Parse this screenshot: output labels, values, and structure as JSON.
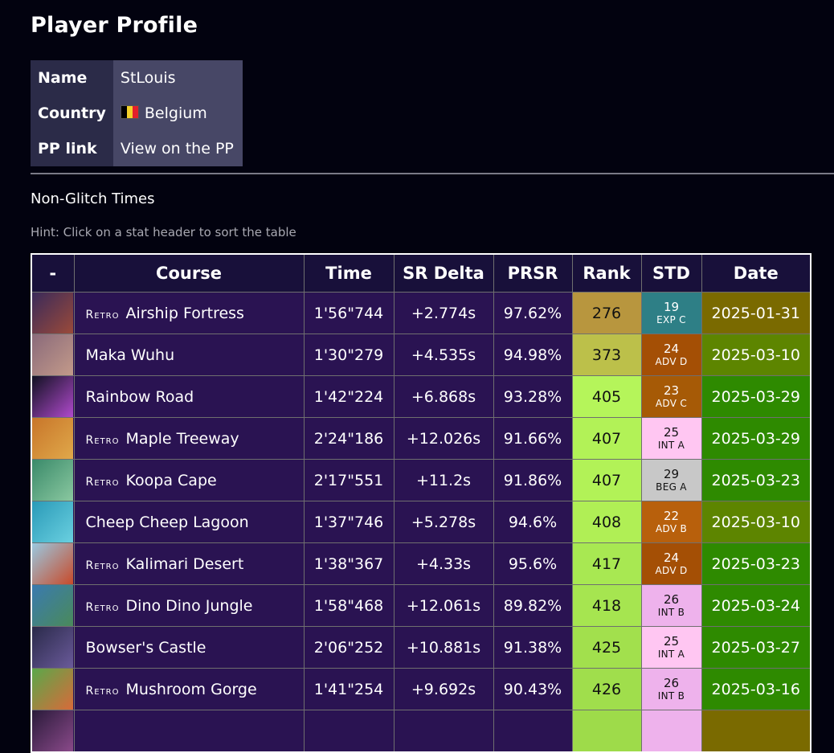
{
  "page": {
    "title": "Player Profile"
  },
  "profile": [
    {
      "label": "Name",
      "value": "StLouis"
    },
    {
      "label": "Country",
      "value": "Belgium"
    },
    {
      "label": "PP link",
      "value": "View on the PP"
    }
  ],
  "section_title": "Non-Glitch Times",
  "hint": "Hint: Click on a stat header to sort the table",
  "table": {
    "headers": [
      "-",
      "Course",
      "Time",
      "SR Delta",
      "PRSR",
      "Rank",
      "STD",
      "Date"
    ],
    "rows": [
      {
        "retro": true,
        "retro_label": "Retro",
        "course": "Airship Fortress",
        "time": "1'56\"744",
        "delta": "+2.774s",
        "prsr": "97.62%",
        "rank": "276",
        "std_num": "19",
        "std_code": "EXP C",
        "date": "2025-01-31",
        "rank_color": "#b8963e",
        "std_color": "#2e7f86",
        "std_text": "#ffffff",
        "date_color": "#7a6a00",
        "thumb": [
          "#3a2a5a",
          "#9a4a3a"
        ]
      },
      {
        "retro": false,
        "retro_label": "",
        "course": "Maka Wuhu",
        "time": "1'30\"279",
        "delta": "+4.535s",
        "prsr": "94.98%",
        "rank": "373",
        "std_num": "24",
        "std_code": "ADV D",
        "date": "2025-03-10",
        "rank_color": "#bcc04a",
        "std_color": "#a44f05",
        "std_text": "#ffffff",
        "date_color": "#5d8500",
        "thumb": [
          "#8a6a7a",
          "#c39a8a"
        ]
      },
      {
        "retro": false,
        "retro_label": "",
        "course": "Rainbow Road",
        "time": "1'42\"224",
        "delta": "+6.868s",
        "prsr": "93.28%",
        "rank": "405",
        "std_num": "23",
        "std_code": "ADV C",
        "date": "2025-03-29",
        "rank_color": "#b5f55a",
        "std_color": "#a65a06",
        "std_text": "#ffffff",
        "date_color": "#2e8a00",
        "thumb": [
          "#111122",
          "#b04acc"
        ]
      },
      {
        "retro": true,
        "retro_label": "Retro",
        "course": "Maple Treeway",
        "time": "2'24\"186",
        "delta": "+12.026s",
        "prsr": "91.66%",
        "rank": "407",
        "std_num": "25",
        "std_code": "INT A",
        "date": "2025-03-29",
        "rank_color": "#b2f257",
        "std_color": "#ffc6f2",
        "std_text": "#111111",
        "date_color": "#2e8a00",
        "thumb": [
          "#c8762a",
          "#e0a84a"
        ]
      },
      {
        "retro": true,
        "retro_label": "Retro",
        "course": "Koopa Cape",
        "time": "2'17\"551",
        "delta": "+11.2s",
        "prsr": "91.86%",
        "rank": "407",
        "std_num": "29",
        "std_code": "BEG A",
        "date": "2025-03-23",
        "rank_color": "#b2f257",
        "std_color": "#c8c8c8",
        "std_text": "#111111",
        "date_color": "#2e8a00",
        "thumb": [
          "#3a8a6a",
          "#8ac8a0"
        ]
      },
      {
        "retro": false,
        "retro_label": "",
        "course": "Cheep Cheep Lagoon",
        "time": "1'37\"746",
        "delta": "+5.278s",
        "prsr": "94.6%",
        "rank": "408",
        "std_num": "22",
        "std_code": "ADV B",
        "date": "2025-03-10",
        "rank_color": "#b0ef55",
        "std_color": "#b8600c",
        "std_text": "#ffffff",
        "date_color": "#5d8500",
        "thumb": [
          "#2a9ab8",
          "#6ad0e0"
        ]
      },
      {
        "retro": true,
        "retro_label": "Retro",
        "course": "Kalimari Desert",
        "time": "1'38\"367",
        "delta": "+4.33s",
        "prsr": "95.6%",
        "rank": "417",
        "std_num": "24",
        "std_code": "ADV D",
        "date": "2025-03-23",
        "rank_color": "#a8e852",
        "std_color": "#a44f05",
        "std_text": "#ffffff",
        "date_color": "#2e8a00",
        "thumb": [
          "#9ac8e0",
          "#c84a2a"
        ]
      },
      {
        "retro": true,
        "retro_label": "Retro",
        "course": "Dino Dino Jungle",
        "time": "1'58\"468",
        "delta": "+12.061s",
        "prsr": "89.82%",
        "rank": "418",
        "std_num": "26",
        "std_code": "INT B",
        "date": "2025-03-24",
        "rank_color": "#a6e550",
        "std_color": "#eeb2ec",
        "std_text": "#111111",
        "date_color": "#2e8a00",
        "thumb": [
          "#3a7ab0",
          "#4a8a5a"
        ]
      },
      {
        "retro": false,
        "retro_label": "",
        "course": "Bowser's Castle",
        "time": "2'06\"252",
        "delta": "+10.881s",
        "prsr": "91.38%",
        "rank": "425",
        "std_num": "25",
        "std_code": "INT A",
        "date": "2025-03-27",
        "rank_color": "#a2e04d",
        "std_color": "#ffc6f2",
        "std_text": "#111111",
        "date_color": "#2e8a00",
        "thumb": [
          "#2a2a4a",
          "#6a5a9a"
        ]
      },
      {
        "retro": true,
        "retro_label": "Retro",
        "course": "Mushroom Gorge",
        "time": "1'41\"254",
        "delta": "+9.692s",
        "prsr": "90.43%",
        "rank": "426",
        "std_num": "26",
        "std_code": "INT B",
        "date": "2025-03-16",
        "rank_color": "#a0de4c",
        "std_color": "#eeb2ec",
        "std_text": "#111111",
        "date_color": "#2e8a00",
        "thumb": [
          "#5aa84a",
          "#d86a3a"
        ]
      },
      {
        "retro": false,
        "retro_label": "",
        "course": "",
        "time": "",
        "delta": "",
        "prsr": "",
        "rank": "",
        "std_num": "",
        "std_code": "",
        "date": "",
        "rank_color": "#9edb4a",
        "std_color": "#eeb2ec",
        "std_text": "#111111",
        "date_color": "#7a6a00",
        "thumb": [
          "#2a1a3a",
          "#8a4a8a"
        ]
      }
    ]
  }
}
